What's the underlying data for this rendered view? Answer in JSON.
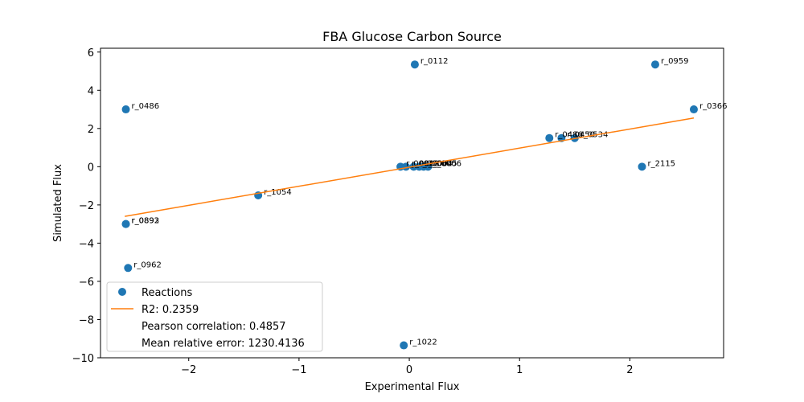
{
  "chart_data": {
    "type": "scatter",
    "title": "FBA Glucose Carbon Source",
    "xlabel": "Experimental Flux",
    "ylabel": "Simulated Flux",
    "xlim": [
      -2.8,
      2.85
    ],
    "ylim": [
      -10,
      6.2
    ],
    "xticks": [
      -2,
      -1,
      0,
      1,
      2
    ],
    "xtick_labels": [
      "−2",
      "−1",
      "0",
      "1",
      "2"
    ],
    "yticks": [
      -10,
      -8,
      -6,
      -4,
      -2,
      0,
      2,
      4,
      6
    ],
    "ytick_labels": [
      "−10",
      "−8",
      "−6",
      "−4",
      "−2",
      "0",
      "2",
      "4",
      "6"
    ],
    "grid": false,
    "legend_position": "lower-left",
    "series": [
      {
        "name": "Reactions",
        "kind": "scatter",
        "color": "#1f77b4",
        "points": [
          {
            "label": "r_0112",
            "x": 0.05,
            "y": 5.35
          },
          {
            "label": "r_0959",
            "x": 2.23,
            "y": 5.35
          },
          {
            "label": "r_0486",
            "x": -2.57,
            "y": 3.0
          },
          {
            "label": "r_0366",
            "x": 2.58,
            "y": 3.0
          },
          {
            "label": "r_0486",
            "x": 1.27,
            "y": 1.5
          },
          {
            "label": "r_0450",
            "x": 1.38,
            "y": 1.5
          },
          {
            "label": "r_0534",
            "x": 1.5,
            "y": 1.5
          },
          {
            "label": "r_2115",
            "x": 2.11,
            "y": 0.0
          },
          {
            "label": "r_0001",
            "x": -0.08,
            "y": 0.0
          },
          {
            "label": "r_0002",
            "x": -0.03,
            "y": 0.0
          },
          {
            "label": "r_0003",
            "x": 0.04,
            "y": 0.0
          },
          {
            "label": "r_0004",
            "x": 0.09,
            "y": 0.0
          },
          {
            "label": "r_0005",
            "x": 0.13,
            "y": 0.0
          },
          {
            "label": "r_0006",
            "x": 0.17,
            "y": 0.0
          },
          {
            "label": "r_1054",
            "x": -1.37,
            "y": -1.5
          },
          {
            "label": "r_0892",
            "x": -2.57,
            "y": -3.0
          },
          {
            "label": "r_0893",
            "x": -2.57,
            "y": -3.0
          },
          {
            "label": "r_0962",
            "x": -2.55,
            "y": -5.3
          },
          {
            "label": "r_1022",
            "x": -0.05,
            "y": -9.35
          }
        ]
      },
      {
        "name": "R2: 0.2359",
        "kind": "line",
        "color": "#ff7f0e",
        "points": [
          {
            "x": -2.58,
            "y": -2.6
          },
          {
            "x": 2.58,
            "y": 2.55
          }
        ]
      }
    ],
    "legend_entries": [
      {
        "label": "Reactions",
        "marker": "dot",
        "color": "#1f77b4"
      },
      {
        "label": "R2: 0.2359",
        "marker": "line",
        "color": "#ff7f0e"
      },
      {
        "label": "Pearson correlation: 0.4857",
        "marker": "none",
        "color": ""
      },
      {
        "label": "Mean relative error: 1230.4136",
        "marker": "none",
        "color": ""
      }
    ]
  }
}
